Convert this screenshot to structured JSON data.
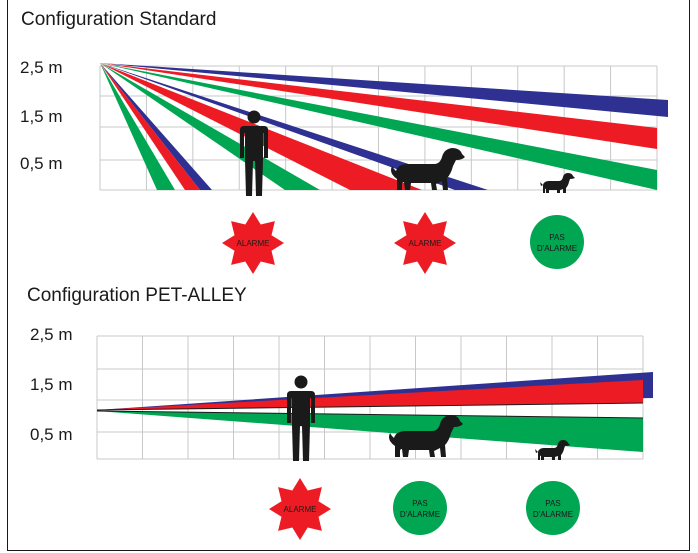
{
  "standard": {
    "title": "Configuration Standard",
    "heights": [
      "2,5 m",
      "1,5 m",
      "0,5 m"
    ],
    "badges": [
      {
        "kind": "alarm",
        "lines": [
          "ALARME"
        ]
      },
      {
        "kind": "alarm",
        "lines": [
          "ALARME"
        ]
      },
      {
        "kind": "no-alarm",
        "lines": [
          "PAS",
          "D'ALARME"
        ]
      }
    ]
  },
  "pet_alley": {
    "title": "Configuration PET-ALLEY",
    "heights": [
      "2,5 m",
      "1,5 m",
      "0,5 m"
    ],
    "badges": [
      {
        "kind": "alarm",
        "lines": [
          "ALARME"
        ]
      },
      {
        "kind": "no-alarm",
        "lines": [
          "PAS",
          "D'ALARME"
        ]
      },
      {
        "kind": "no-alarm",
        "lines": [
          "PAS",
          "D'ALARME"
        ]
      }
    ]
  },
  "colors": {
    "blue": "#2e3192",
    "red": "#ed1c24",
    "green": "#00a651",
    "grid": "#c8c8c8",
    "figure": "#1a1a1a"
  }
}
